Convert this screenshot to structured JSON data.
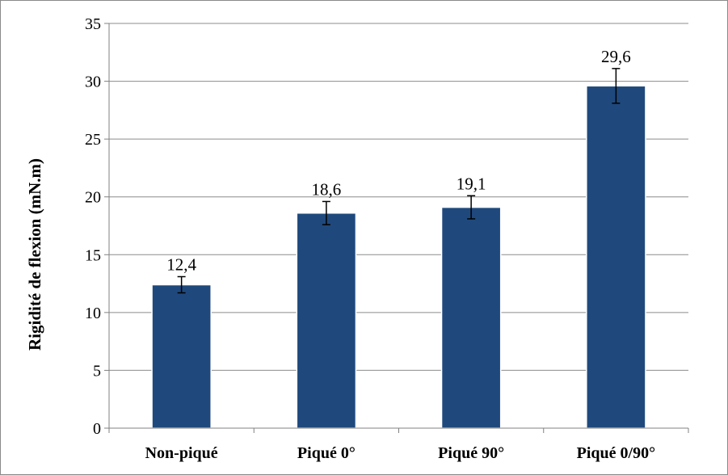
{
  "chart_data": {
    "type": "bar",
    "title": "",
    "xlabel": "",
    "ylabel": "Rigidité de flexion (mN.m)",
    "categories": [
      "Non-piqué",
      "Piqué 0°",
      "Piqué 90°",
      "Piqué 0/90°"
    ],
    "values": [
      12.4,
      18.6,
      19.1,
      29.6
    ],
    "value_labels": [
      "12,4",
      "18,6",
      "19,1",
      "29,6"
    ],
    "error_bars": [
      0.7,
      1.0,
      1.0,
      1.5
    ],
    "ylim": [
      0,
      35
    ],
    "yticks": [
      0,
      5,
      10,
      15,
      20,
      25,
      30,
      35
    ],
    "grid": true,
    "legend": "none",
    "bar_color": "#1f497d",
    "grid_color": "#8c8c8c"
  }
}
